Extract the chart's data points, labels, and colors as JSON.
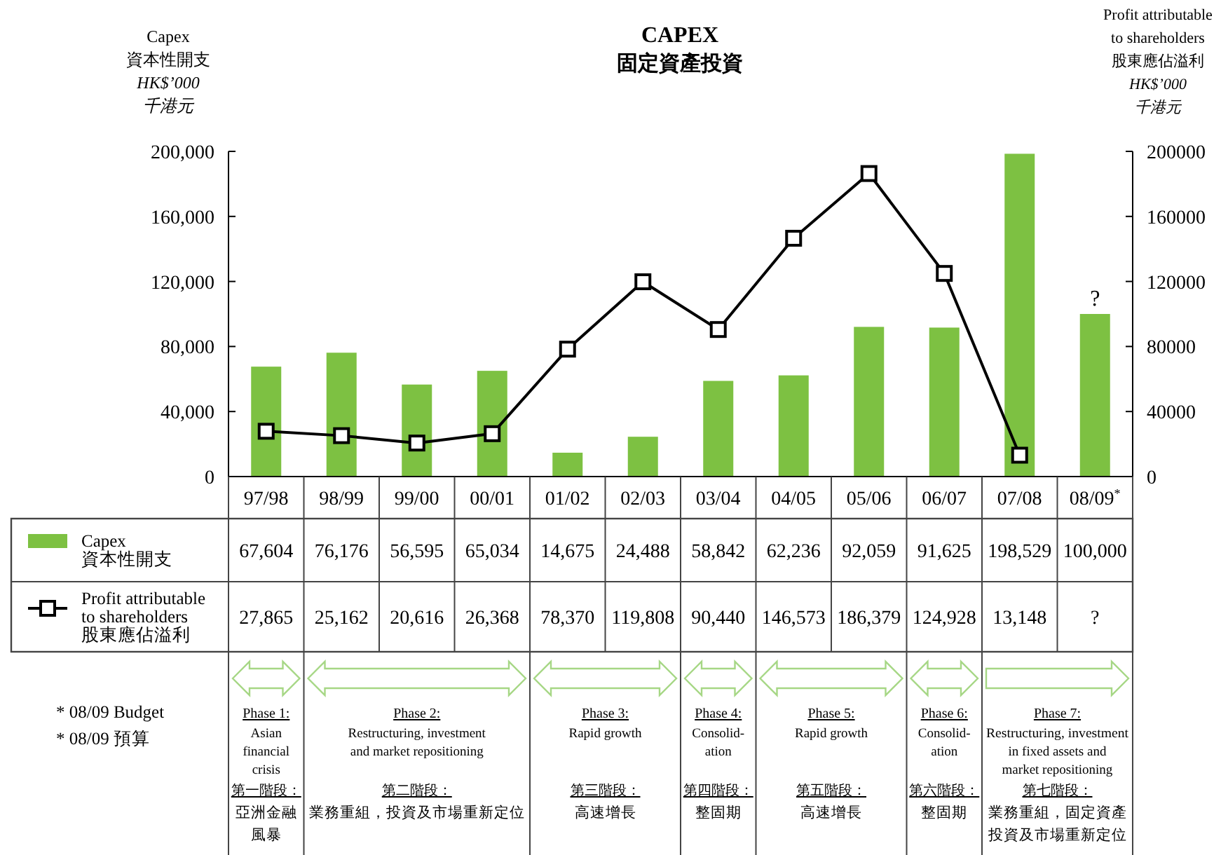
{
  "chart_data": {
    "type": "bar",
    "title": "CAPEX",
    "subtitle": "固定資產投資",
    "ylabel": "Capex\n資本性開支\nHK$’000\n千港元",
    "y2label": "Profit attributable\nto shareholders\n股東應佔溢利\nHK$’000\n千港元",
    "categories": [
      "97/98",
      "98/99",
      "99/00",
      "00/01",
      "01/02",
      "02/03",
      "03/04",
      "04/05",
      "05/06",
      "06/07",
      "07/08",
      "08/09$^{*}$"
    ],
    "series": [
      {
        "name": "Capex\n資本性開支",
        "color": "#7dc142",
        "values": [
          67604,
          76176,
          56595,
          65034,
          14675,
          24488,
          58842,
          62236,
          92059,
          91625,
          198529,
          100000
        ],
        "value_labels": [
          "67,604",
          "76,176",
          "56,595",
          "65,034",
          "14,675",
          "24,488",
          "58,842",
          "62,236",
          "92,059",
          "91,625",
          "198,529",
          "100,000"
        ]
      },
      {
        "name": "Profit attributable\nto shareholders\n股東應佔溢利",
        "type": "line",
        "axis": "y2",
        "color": "#000000",
        "values": [
          27865,
          25162,
          20616,
          26368,
          78370,
          119808,
          90440,
          146573,
          186379,
          124928,
          13148,
          null
        ],
        "value_labels": [
          "27,865",
          "25,162",
          "20,616",
          "26,368",
          "78,370",
          "119,808",
          "90,440",
          "146,573",
          "186,379",
          "124,928",
          "13,148",
          "?"
        ]
      }
    ],
    "ylim": [
      0,
      200000
    ],
    "yticks": [
      0,
      {
        "value": 40000,
        "label": "40,000"
      },
      {
        "value": 80000,
        "label": "80,000"
      },
      {
        "value": 120000,
        "label": "120,000"
      },
      {
        "value": 160000,
        "label": "160,000"
      },
      {
        "value": 200000,
        "label": "200,000"
      }
    ],
    "y2lim": [
      0,
      200000
    ],
    "y2ticks": [
      0,
      40000,
      80000,
      120000,
      160000,
      200000
    ],
    "marker": "square",
    "line_style": "solid",
    "legend": "bottom",
    "grid": false,
    "annotations": [
      "* 08/09 Budget",
      "* 08/09 預算",
      {
        "text": "?",
        "x": "08/09$^{*}$",
        "y": 100000
      },
      "Phase 1:",
      "Asian\nfinancial\ncrisis",
      "第一階段：",
      "亞洲金融風暴",
      "Phase 2:",
      "Restructuring, investment\nand market repositioning",
      "第二階段：",
      "業務重組，投資及市場重新定位",
      "Phase 3:",
      "Rapid growth",
      "第三階段：",
      "高速增長",
      "Phase 4:",
      "Consolid-\nation",
      "第四階段：",
      "整固期",
      "Phase 5:",
      "Rapid growth",
      "第五階段：",
      "高速增長",
      "Phase 6:",
      "Consolid-\nation",
      "第六階段：",
      "整固期",
      "Phase 7:",
      "Restructuring, investment\nin fixed assets and\nmarket repositioning",
      "第七階段：",
      "業務重組，固定資產投資及市場重新定位"
    ]
  }
}
